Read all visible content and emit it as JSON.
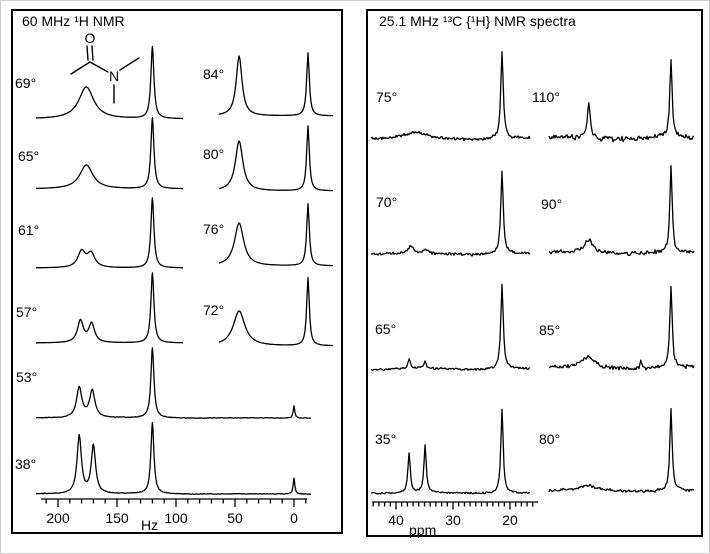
{
  "molecule": {
    "o_label": "O",
    "n_label": "N"
  },
  "chart_data": [
    {
      "type": "line",
      "title": "60 MHz ¹H NMR",
      "xlabel": "Hz",
      "x_axis": {
        "unit": "Hz",
        "majors": [
          200,
          150,
          100,
          50,
          0
        ],
        "minor_start": 210,
        "minor_end": -10,
        "minor_step": 10,
        "direction": "values-decrease-to-right"
      },
      "series": [
        {
          "label": "69°",
          "column": "left",
          "noise": 0,
          "peaks": [
            {
              "x": 176,
              "h": 32,
              "w": 9
            },
            {
              "x": 120,
              "h": 72,
              "w": 1.8
            }
          ]
        },
        {
          "label": "65°",
          "column": "left",
          "noise": 0,
          "peaks": [
            {
              "x": 176,
              "h": 24,
              "w": 8
            },
            {
              "x": 120,
              "h": 71,
              "w": 1.8
            }
          ]
        },
        {
          "label": "61°",
          "column": "left",
          "noise": 0,
          "peaks": [
            {
              "x": 180,
              "h": 16,
              "w": 4.5
            },
            {
              "x": 172,
              "h": 14,
              "w": 4.5
            },
            {
              "x": 120,
              "h": 70,
              "w": 1.8
            }
          ]
        },
        {
          "label": "57°",
          "column": "left",
          "noise": 0,
          "peaks": [
            {
              "x": 181,
              "h": 22,
              "w": 3.5
            },
            {
              "x": 171.5,
              "h": 19,
              "w": 3.5
            },
            {
              "x": 120,
              "h": 70,
              "w": 1.8
            }
          ]
        },
        {
          "label": "53°",
          "column": "left",
          "noise": 0.3,
          "peaks": [
            {
              "x": 182,
              "h": 30,
              "w": 3.2
            },
            {
              "x": 171,
              "h": 27,
              "w": 3.2
            },
            {
              "x": 120,
              "h": 70,
              "w": 1.8
            },
            {
              "x": 0,
              "h": 12,
              "w": 1
            }
          ]
        },
        {
          "label": "38°",
          "column": "left",
          "noise": 0.3,
          "peaks": [
            {
              "x": 182,
              "h": 58,
              "w": 2.6
            },
            {
              "x": 170,
              "h": 48,
              "w": 2.6
            },
            {
              "x": 120,
              "h": 71,
              "w": 1.8
            },
            {
              "x": 0,
              "h": 16,
              "w": 1
            }
          ]
        },
        {
          "label": "84°",
          "column": "right",
          "noise": 0,
          "peaks": [
            {
              "x": 176,
              "h": 60,
              "w": 3.5
            },
            {
              "x": 120,
              "h": 63,
              "w": 1.6
            }
          ]
        },
        {
          "label": "80°",
          "column": "right",
          "noise": 0,
          "peaks": [
            {
              "x": 176,
              "h": 50,
              "w": 4.5
            },
            {
              "x": 120,
              "h": 65,
              "w": 1.6
            }
          ]
        },
        {
          "label": "76°",
          "column": "right",
          "noise": 0,
          "peaks": [
            {
              "x": 176,
              "h": 43,
              "w": 5.5
            },
            {
              "x": 120,
              "h": 62,
              "w": 1.6
            }
          ]
        },
        {
          "label": "72°",
          "column": "right",
          "noise": 0,
          "peaks": [
            {
              "x": 176,
              "h": 35,
              "w": 7
            },
            {
              "x": 120,
              "h": 68,
              "w": 1.6
            }
          ]
        }
      ]
    },
    {
      "type": "line",
      "title": "25.1 MHz ¹³C {¹H} NMR spectra",
      "xlabel": "ppm",
      "x_axis": {
        "unit": "ppm",
        "majors": [
          40,
          30,
          20
        ],
        "minor_start": 44,
        "minor_end": 16,
        "minor_step": 1,
        "direction": "values-decrease-to-right"
      },
      "series": [
        {
          "label": "75°",
          "column": "left",
          "noise": 1.2,
          "peaks": [
            {
              "x": 36.5,
              "h": 6,
              "w": 14
            },
            {
              "x": 21.4,
              "h": 86,
              "w": 1.5
            }
          ]
        },
        {
          "label": "70°",
          "column": "left",
          "noise": 1.2,
          "peaks": [
            {
              "x": 37.4,
              "h": 7,
              "w": 3
            },
            {
              "x": 34.9,
              "h": 4,
              "w": 3
            },
            {
              "x": 21.4,
              "h": 82,
              "w": 1.5
            }
          ]
        },
        {
          "label": "65°",
          "column": "left",
          "noise": 1.0,
          "peaks": [
            {
              "x": 37.7,
              "h": 9,
              "w": 1.5
            },
            {
              "x": 34.9,
              "h": 7,
              "w": 1.5
            },
            {
              "x": 21.4,
              "h": 85,
              "w": 1.5
            }
          ]
        },
        {
          "label": "35°",
          "column": "left",
          "noise": 0.7,
          "peaks": [
            {
              "x": 37.7,
              "h": 40,
              "w": 1.4
            },
            {
              "x": 34.9,
              "h": 47,
              "w": 1.4
            },
            {
              "x": 21.4,
              "h": 84,
              "w": 1.4
            }
          ]
        },
        {
          "label": "110°",
          "column": "right",
          "noise": 2.2,
          "peaks": [
            {
              "x": 35.8,
              "h": 35,
              "w": 1.8
            },
            {
              "x": 21.4,
              "h": 77,
              "w": 1.4
            }
          ]
        },
        {
          "label": "90°",
          "column": "right",
          "noise": 1.6,
          "peaks": [
            {
              "x": 35.8,
              "h": 13,
              "w": 5
            },
            {
              "x": 21.4,
              "h": 87,
              "w": 1.4
            }
          ]
        },
        {
          "label": "85°",
          "column": "right",
          "noise": 1.6,
          "peaks": [
            {
              "x": 36,
              "h": 11,
              "w": 7
            },
            {
              "x": 26.7,
              "h": 8,
              "w": 0.9
            },
            {
              "x": 21.4,
              "h": 82,
              "w": 1.4
            }
          ]
        },
        {
          "label": "80°",
          "column": "right",
          "noise": 1.2,
          "peaks": [
            {
              "x": 36,
              "h": 5,
              "w": 10
            },
            {
              "x": 21.4,
              "h": 82,
              "w": 1.4
            }
          ]
        }
      ]
    }
  ]
}
